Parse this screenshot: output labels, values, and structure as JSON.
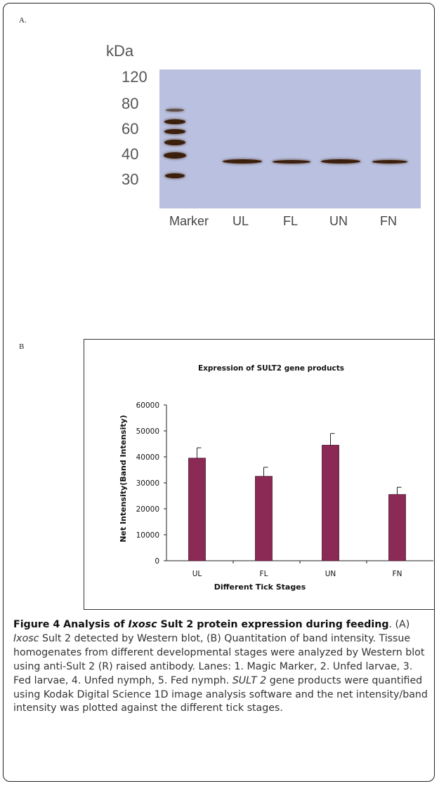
{
  "panel_a": {
    "label": "A.",
    "kda": "kDa",
    "mw_markers": [
      "120",
      "80",
      "60",
      "40",
      "30"
    ],
    "lanes": [
      "Marker",
      "UL",
      "FL",
      "UN",
      "FN"
    ]
  },
  "panel_b": {
    "label": "B"
  },
  "chart_data": {
    "type": "bar",
    "title": "Expression of SULT2 gene products",
    "xlabel": "Different Tick Stages",
    "ylabel": "Net Intensity(Band Intensity)",
    "categories": [
      "UL",
      "FL",
      "UN",
      "FN"
    ],
    "values": [
      39500,
      32500,
      44500,
      25500
    ],
    "errors": [
      4000,
      3500,
      4500,
      2800
    ],
    "ylim": [
      0,
      60000
    ],
    "yticks": [
      "0",
      "10000",
      "20000",
      "30000",
      "40000",
      "50000",
      "60000"
    ],
    "bar_color": "#8b2a55",
    "grid": false
  },
  "caption": {
    "title_pre": "Figure 4 Analysis of ",
    "title_italic": "Ixosc",
    "title_post": " Sult 2 protein expression during feeding",
    "text_1": ". (A) ",
    "text_italic_1": "Ixosc",
    "text_2": " Sult 2 detected by Western blot, (B) Quantitation of band intensity. Tissue homogenates from different developmental stages were analyzed by Western blot using anti-Sult 2 (R) raised antibody. Lanes: 1. Magic Marker, 2. Unfed larvae, 3. Fed larvae, 4. Unfed nymph, 5. Fed nymph. ",
    "text_italic_2": "SULT 2",
    "text_3": " gene products were quantified using Kodak Digital Science 1D image analysis software and the net intensity/band intensity was plotted against the different tick stages."
  }
}
